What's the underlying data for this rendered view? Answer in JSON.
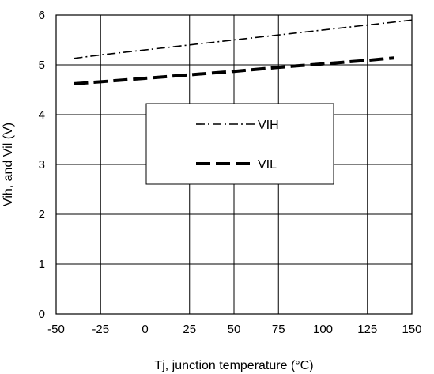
{
  "chart_data": {
    "type": "line",
    "title": "",
    "xlabel": "Tj, junction temperature (°C)",
    "ylabel": "Vih, and Vil (V)",
    "xlim": [
      -50,
      150
    ],
    "ylim": [
      0,
      6
    ],
    "x_ticks": [
      "-50",
      "-25",
      "0",
      "25",
      "50",
      "75",
      "100",
      "125",
      "150"
    ],
    "y_ticks": [
      "0",
      "1",
      "2",
      "3",
      "4",
      "5",
      "6"
    ],
    "grid": true,
    "legend_position": "center",
    "series": [
      {
        "name": "VIH",
        "style": "dash-dot",
        "color": "#000000",
        "x": [
          -40,
          -25,
          0,
          25,
          50,
          75,
          100,
          125,
          150
        ],
        "y": [
          5.13,
          5.2,
          5.3,
          5.4,
          5.5,
          5.6,
          5.7,
          5.8,
          5.9
        ]
      },
      {
        "name": "VIL",
        "style": "long-dash",
        "color": "#000000",
        "x": [
          -40,
          -25,
          0,
          25,
          50,
          75,
          100,
          125,
          140
        ],
        "y": [
          4.62,
          4.66,
          4.73,
          4.8,
          4.87,
          4.95,
          5.02,
          5.09,
          5.14
        ]
      }
    ]
  }
}
